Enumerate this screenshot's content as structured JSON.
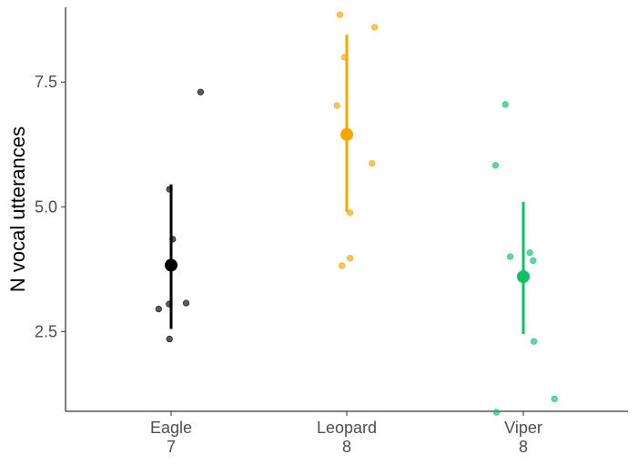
{
  "chart_data": {
    "type": "scatter",
    "title": "",
    "xlabel": "",
    "ylabel": "N vocal utterances",
    "ylim": [
      0.9,
      9.0
    ],
    "yticks": [
      2.5,
      5.0,
      7.5
    ],
    "ytick_labels": [
      "2.5",
      "5.0",
      "7.5"
    ],
    "grid": false,
    "legend": "none",
    "groups": [
      {
        "category": "Eagle",
        "count_label": "7",
        "color": "#000000",
        "mean": 3.83,
        "ci": [
          2.55,
          5.45
        ],
        "points": [
          {
            "jitter": 0.9,
            "y": 7.3
          },
          {
            "jitter": -0.05,
            "y": 5.35
          },
          {
            "jitter": 0.05,
            "y": 4.35
          },
          {
            "jitter": -0.06,
            "y": 3.05
          },
          {
            "jitter": 0.46,
            "y": 3.07
          },
          {
            "jitter": -0.38,
            "y": 2.95
          },
          {
            "jitter": -0.05,
            "y": 2.35
          }
        ]
      },
      {
        "category": "Leopard",
        "count_label": "8",
        "color": "#F5A600",
        "mean": 6.45,
        "ci": [
          4.9,
          8.45
        ],
        "points": [
          {
            "jitter": -0.21,
            "y": 8.85
          },
          {
            "jitter": 0.85,
            "y": 8.6
          },
          {
            "jitter": -0.07,
            "y": 8.0
          },
          {
            "jitter": -0.3,
            "y": 7.03
          },
          {
            "jitter": 0.77,
            "y": 5.87
          },
          {
            "jitter": 0.1,
            "y": 4.88
          },
          {
            "jitter": 0.1,
            "y": 3.97
          },
          {
            "jitter": -0.15,
            "y": 3.82
          }
        ]
      },
      {
        "category": "Viper",
        "count_label": "8",
        "color": "#12C063",
        "mean": 3.6,
        "ci": [
          2.45,
          5.1
        ],
        "points": [
          {
            "jitter": -0.55,
            "y": 7.05
          },
          {
            "jitter": -0.85,
            "y": 5.83
          },
          {
            "jitter": 0.2,
            "y": 4.08
          },
          {
            "jitter": -0.4,
            "y": 4.0
          },
          {
            "jitter": 0.3,
            "y": 3.92
          },
          {
            "jitter": 0.32,
            "y": 2.3
          },
          {
            "jitter": 0.95,
            "y": 1.15
          },
          {
            "jitter": -0.82,
            "y": 0.88
          }
        ]
      }
    ]
  }
}
